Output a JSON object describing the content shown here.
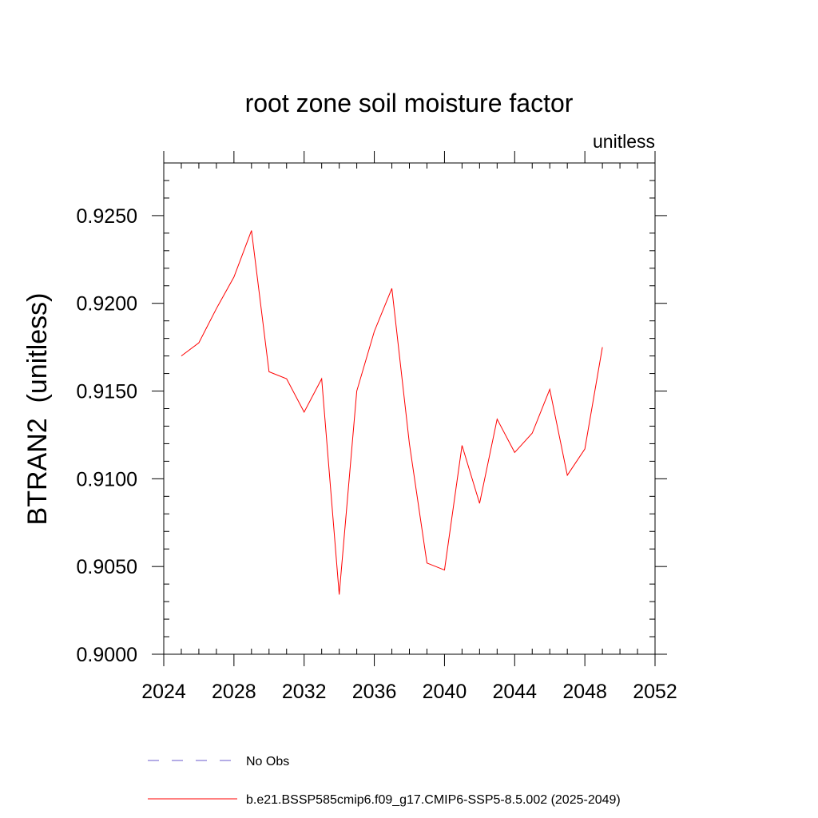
{
  "chart_data": {
    "type": "line",
    "title": "root zone soil moisture factor",
    "units_label": "unitless",
    "xlabel": "",
    "ylabel": "BTRAN2  (unitless)",
    "xlim": [
      2024,
      2052
    ],
    "ylim": [
      0.9,
      0.928
    ],
    "x_ticks": [
      2024,
      2028,
      2032,
      2036,
      2040,
      2044,
      2048,
      2052
    ],
    "x_tick_labels": [
      "2024",
      "2028",
      "2032",
      "2036",
      "2040",
      "2044",
      "2048",
      "2052"
    ],
    "y_ticks": [
      0.9,
      0.905,
      0.91,
      0.915,
      0.92,
      0.925
    ],
    "y_tick_labels": [
      "0.9000",
      "0.9050",
      "0.9100",
      "0.9150",
      "0.9200",
      "0.9250"
    ],
    "series": [
      {
        "name": "b.e21.BSSP585cmip6.f09_g17.CMIP6-SSP5-8.5.002 (2025-2049)",
        "color": "#ff0000",
        "style": "solid",
        "x": [
          2025,
          2026,
          2027,
          2028,
          2029,
          2030,
          2031,
          2032,
          2033,
          2034,
          2035,
          2036,
          2037,
          2038,
          2039,
          2040,
          2041,
          2042,
          2043,
          2044,
          2045,
          2046,
          2047,
          2048,
          2049
        ],
        "values": [
          0.917,
          0.91775,
          0.9197,
          0.9215,
          0.92415,
          0.9161,
          0.9157,
          0.9138,
          0.9157,
          0.9034,
          0.915,
          0.9184,
          0.92085,
          0.912,
          0.9052,
          0.9048,
          0.9119,
          0.9086,
          0.9134,
          0.9115,
          0.9126,
          0.9151,
          0.9102,
          0.9117,
          0.9175
        ]
      }
    ],
    "legend": [
      {
        "label": "No Obs",
        "color": "#6a5acd",
        "style": "dashed"
      },
      {
        "label": "b.e21.BSSP585cmip6.f09_g17.CMIP6-SSP5-8.5.002 (2025-2049)",
        "color": "#ff0000",
        "style": "solid"
      }
    ]
  }
}
